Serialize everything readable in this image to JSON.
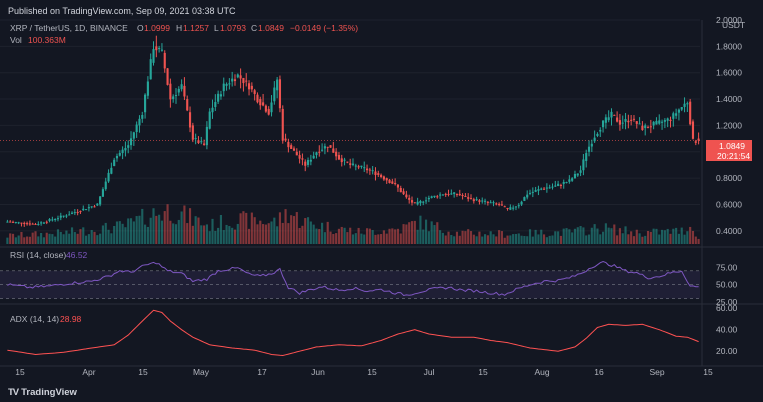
{
  "header": {
    "published": "Published on TradingView.com, Sep 09, 2021 03:38 UTC"
  },
  "branding": {
    "logo_text": "TradingView",
    "logo_icon": "tradingview-logo-icon"
  },
  "colors": {
    "background": "#131722",
    "up": "#26a69a",
    "down": "#ef5350",
    "rsi": "#7e57c2",
    "adx": "#ff5252",
    "text": "#b2b5be"
  },
  "chart_data": [
    {
      "type": "candlestick",
      "title": "XRP / TetherUS, 1D, BINANCE",
      "ohlc_label": {
        "o": "O",
        "o_val": "1.0999",
        "h": "H",
        "h_val": "1.1257",
        "l": "L",
        "l_val": "1.0793",
        "c": "C",
        "c_val": "1.0849",
        "change": "−0.0149 (−1.35%)"
      },
      "volume_label": {
        "name": "Vol",
        "value": "100.363M"
      },
      "currency": "USDT",
      "ylim": [
        0.3,
        2.0
      ],
      "y_ticks": [
        "2.0000",
        "1.8000",
        "1.6000",
        "1.4000",
        "1.2000",
        "1.0000",
        "0.8000",
        "0.6000",
        "0.4000"
      ],
      "last_price": "1.0849",
      "countdown": "20:21:54",
      "x_ticks": [
        "15",
        "Apr",
        "15",
        "May",
        "17",
        "Jun",
        "15",
        "Jul",
        "15",
        "Aug",
        "16",
        "Sep",
        "15"
      ],
      "anchors": [
        [
          0,
          0.47
        ],
        [
          10,
          0.45
        ],
        [
          18,
          0.5
        ],
        [
          25,
          0.55
        ],
        [
          32,
          0.6
        ],
        [
          38,
          0.95
        ],
        [
          43,
          1.05
        ],
        [
          48,
          1.3
        ],
        [
          52,
          1.8
        ],
        [
          55,
          1.75
        ],
        [
          58,
          1.4
        ],
        [
          62,
          1.5
        ],
        [
          64,
          1.3
        ],
        [
          66,
          1.1
        ],
        [
          70,
          1.05
        ],
        [
          72,
          1.3
        ],
        [
          77,
          1.5
        ],
        [
          80,
          1.55
        ],
        [
          82,
          1.58
        ],
        [
          86,
          1.5
        ],
        [
          89,
          1.4
        ],
        [
          93,
          1.3
        ],
        [
          96,
          1.55
        ],
        [
          98,
          1.1
        ],
        [
          102,
          1.0
        ],
        [
          106,
          0.9
        ],
        [
          110,
          1.0
        ],
        [
          114,
          1.05
        ],
        [
          118,
          0.95
        ],
        [
          122,
          0.9
        ],
        [
          126,
          0.88
        ],
        [
          130,
          0.85
        ],
        [
          134,
          0.8
        ],
        [
          138,
          0.75
        ],
        [
          142,
          0.65
        ],
        [
          145,
          0.6
        ],
        [
          150,
          0.65
        ],
        [
          155,
          0.68
        ],
        [
          160,
          0.68
        ],
        [
          165,
          0.64
        ],
        [
          170,
          0.62
        ],
        [
          175,
          0.6
        ],
        [
          178,
          0.56
        ],
        [
          182,
          0.6
        ],
        [
          185,
          0.68
        ],
        [
          190,
          0.72
        ],
        [
          195,
          0.74
        ],
        [
          200,
          0.78
        ],
        [
          204,
          0.86
        ],
        [
          206,
          1.0
        ],
        [
          209,
          1.12
        ],
        [
          212,
          1.22
        ],
        [
          215,
          1.28
        ],
        [
          218,
          1.22
        ],
        [
          222,
          1.25
        ],
        [
          226,
          1.18
        ],
        [
          229,
          1.2
        ],
        [
          232,
          1.22
        ],
        [
          236,
          1.25
        ],
        [
          239,
          1.32
        ],
        [
          242,
          1.38
        ],
        [
          244,
          1.08
        ],
        [
          246,
          1.0849
        ]
      ],
      "volume_ylim": [
        0,
        300
      ],
      "volume_anchors": [
        [
          0,
          40
        ],
        [
          20,
          55
        ],
        [
          36,
          80
        ],
        [
          42,
          90
        ],
        [
          52,
          150
        ],
        [
          58,
          170
        ],
        [
          66,
          125
        ],
        [
          72,
          90
        ],
        [
          80,
          120
        ],
        [
          96,
          110
        ],
        [
          100,
          160
        ],
        [
          104,
          120
        ],
        [
          112,
          90
        ],
        [
          125,
          60
        ],
        [
          140,
          75
        ],
        [
          146,
          110
        ],
        [
          160,
          55
        ],
        [
          180,
          50
        ],
        [
          200,
          60
        ],
        [
          212,
          80
        ],
        [
          225,
          55
        ],
        [
          240,
          65
        ],
        [
          244,
          90
        ],
        [
          246,
          25
        ]
      ]
    },
    {
      "type": "line",
      "title": "RSI (14, close)",
      "value_label": "46.52",
      "ylim": [
        25,
        100
      ],
      "y_ticks": [
        "75.00",
        "50.00",
        "25.00"
      ],
      "band": [
        30,
        70
      ],
      "anchors": [
        [
          0,
          50
        ],
        [
          8,
          46
        ],
        [
          15,
          48
        ],
        [
          22,
          52
        ],
        [
          30,
          55
        ],
        [
          36,
          62
        ],
        [
          40,
          70
        ],
        [
          44,
          68
        ],
        [
          49,
          78
        ],
        [
          53,
          82
        ],
        [
          57,
          70
        ],
        [
          62,
          66
        ],
        [
          66,
          55
        ],
        [
          71,
          58
        ],
        [
          75,
          70
        ],
        [
          78,
          72
        ],
        [
          82,
          74
        ],
        [
          86,
          65
        ],
        [
          90,
          62
        ],
        [
          94,
          66
        ],
        [
          97,
          72
        ],
        [
          100,
          46
        ],
        [
          104,
          38
        ],
        [
          108,
          43
        ],
        [
          112,
          47
        ],
        [
          118,
          42
        ],
        [
          123,
          45
        ],
        [
          128,
          41
        ],
        [
          133,
          43
        ],
        [
          138,
          38
        ],
        [
          142,
          35
        ],
        [
          147,
          40
        ],
        [
          152,
          44
        ],
        [
          157,
          46
        ],
        [
          162,
          42
        ],
        [
          167,
          41
        ],
        [
          172,
          38
        ],
        [
          177,
          36
        ],
        [
          181,
          43
        ],
        [
          186,
          50
        ],
        [
          191,
          55
        ],
        [
          196,
          56
        ],
        [
          201,
          61
        ],
        [
          205,
          68
        ],
        [
          208,
          76
        ],
        [
          212,
          82
        ],
        [
          216,
          77
        ],
        [
          220,
          70
        ],
        [
          224,
          67
        ],
        [
          228,
          60
        ],
        [
          232,
          62
        ],
        [
          236,
          67
        ],
        [
          240,
          70
        ],
        [
          243,
          48
        ],
        [
          246,
          46.52
        ]
      ]
    },
    {
      "type": "line",
      "title": "ADX (14, 14)",
      "value_label": "28.98",
      "ylim": [
        10,
        62
      ],
      "y_ticks": [
        "60.00",
        "40.00",
        "20.00"
      ],
      "anchors": [
        [
          0,
          21
        ],
        [
          10,
          17
        ],
        [
          20,
          19
        ],
        [
          30,
          23
        ],
        [
          38,
          26
        ],
        [
          43,
          35
        ],
        [
          48,
          48
        ],
        [
          52,
          58
        ],
        [
          55,
          56
        ],
        [
          58,
          48
        ],
        [
          62,
          40
        ],
        [
          66,
          33
        ],
        [
          72,
          26
        ],
        [
          80,
          23
        ],
        [
          88,
          21
        ],
        [
          94,
          17
        ],
        [
          98,
          16
        ],
        [
          104,
          20
        ],
        [
          110,
          24
        ],
        [
          118,
          26
        ],
        [
          126,
          25
        ],
        [
          133,
          30
        ],
        [
          139,
          36
        ],
        [
          145,
          40
        ],
        [
          150,
          36
        ],
        [
          158,
          33
        ],
        [
          166,
          33
        ],
        [
          172,
          30
        ],
        [
          178,
          28
        ],
        [
          186,
          23
        ],
        [
          196,
          20
        ],
        [
          202,
          24
        ],
        [
          206,
          32
        ],
        [
          210,
          42
        ],
        [
          214,
          45
        ],
        [
          220,
          44
        ],
        [
          226,
          45
        ],
        [
          232,
          40
        ],
        [
          238,
          34
        ],
        [
          242,
          33
        ],
        [
          246,
          28.98
        ]
      ]
    }
  ]
}
